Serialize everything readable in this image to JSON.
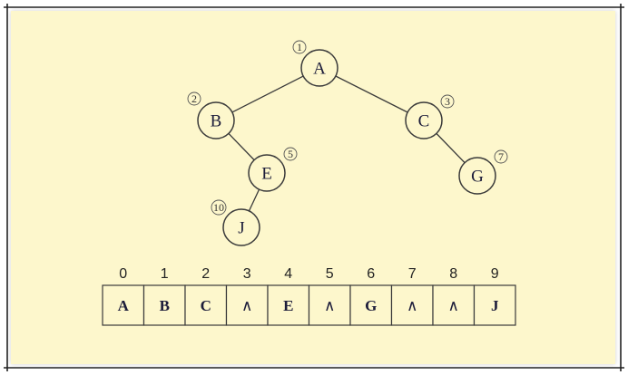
{
  "tree": {
    "nodes": [
      {
        "id": "A",
        "order": "1"
      },
      {
        "id": "B",
        "order": "2"
      },
      {
        "id": "C",
        "order": "3"
      },
      {
        "id": "E",
        "order": "5"
      },
      {
        "id": "G",
        "order": "7"
      },
      {
        "id": "J",
        "order": "10"
      }
    ],
    "edges": [
      [
        "A",
        "B"
      ],
      [
        "A",
        "C"
      ],
      [
        "B",
        "E"
      ],
      [
        "E",
        "J"
      ],
      [
        "C",
        "G"
      ]
    ]
  },
  "array": {
    "indices": [
      "0",
      "1",
      "2",
      "3",
      "4",
      "5",
      "6",
      "7",
      "8",
      "9"
    ],
    "cells": [
      "A",
      "B",
      "C",
      "∧",
      "E",
      "∧",
      "G",
      "∧",
      "∧",
      "J"
    ]
  },
  "colors": {
    "background": "#fdf7cc",
    "stroke": "#3a3a3a"
  }
}
